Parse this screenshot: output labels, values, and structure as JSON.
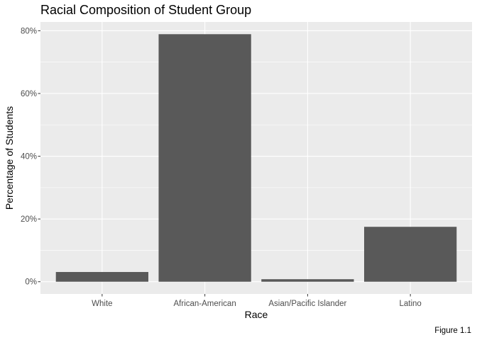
{
  "chart_data": {
    "type": "bar",
    "title": "Racial Composition of Student Group",
    "xlabel": "Race",
    "ylabel": "Percentage of Students",
    "caption": "Figure 1.1",
    "categories": [
      "White",
      "African-American",
      "Asian/Pacific Islander",
      "Latino"
    ],
    "values": [
      3.1,
      78.9,
      0.8,
      17.5
    ],
    "ylim": [
      -3.9,
      82.8
    ],
    "yticks": [
      0,
      20,
      40,
      60,
      80
    ],
    "ytick_labels": [
      "0%",
      "20%",
      "40%",
      "60%",
      "80%"
    ],
    "grid": true,
    "colors": {
      "panel": "#ebebeb",
      "gridline": "#ffffff",
      "bar": "#595959",
      "tick": "#333333"
    }
  }
}
